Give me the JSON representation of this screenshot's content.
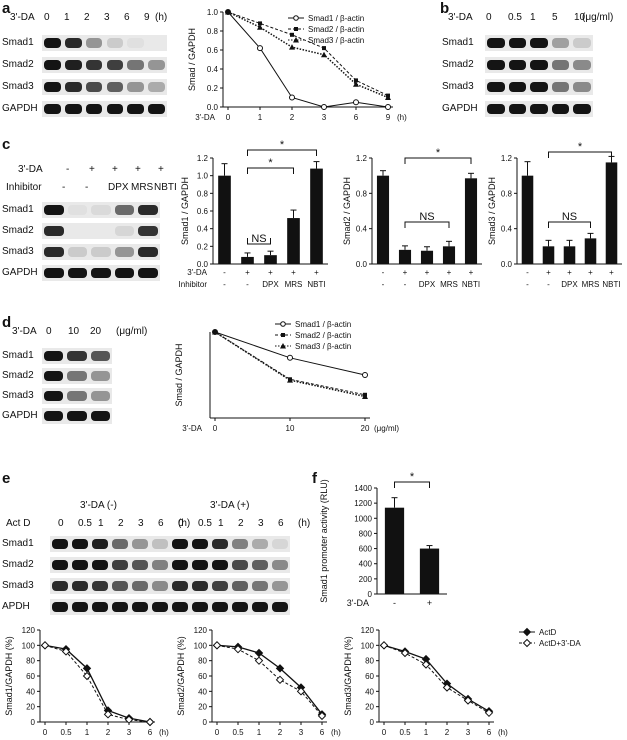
{
  "panels": {
    "a": {
      "label": "a",
      "blot": {
        "header_label": "3'-DA",
        "lanes": [
          "0",
          "1",
          "2",
          "3",
          "6",
          "9"
        ],
        "unit": "(h)",
        "rows": [
          "Smad1",
          "Smad2",
          "Smad3",
          "GAPDH"
        ]
      }
    },
    "b": {
      "label": "b",
      "blot": {
        "header_label": "3'-DA",
        "lanes": [
          "0",
          "0.5",
          "1",
          "5",
          "10"
        ],
        "unit": "(μg/ml)",
        "rows": [
          "Smad1",
          "Smad2",
          "Smad3",
          "GAPDH"
        ]
      }
    },
    "c": {
      "label": "c",
      "blot": {
        "row1_label": "3'-DA",
        "row1_values": [
          "-",
          "+",
          "+",
          "+",
          "+"
        ],
        "row2_label": "Inhibitor",
        "row2_values": [
          "-",
          "-",
          "DPX",
          "MRS",
          "NBTI"
        ],
        "rows": [
          "Smad1",
          "Smad2",
          "Smad3",
          "GAPDH"
        ]
      },
      "bar_x_row1_label": "3'-DA",
      "bar_x_row1": [
        "-",
        "+",
        "+",
        "+",
        "+"
      ],
      "bar_x_row2_label": "Inhibitor",
      "bar_x_row2": [
        "-",
        "-",
        "DPX",
        "MRS",
        "NBTI"
      ],
      "sig": "*",
      "ns": "NS"
    },
    "d": {
      "label": "d",
      "blot": {
        "header_label": "3'-DA",
        "lanes": [
          "0",
          "10",
          "20"
        ],
        "unit": "(μg/ml)",
        "rows": [
          "Smad1",
          "Smad2",
          "Smad3",
          "GAPDH"
        ]
      }
    },
    "e": {
      "label": "e",
      "blot": {
        "group_neg": "3'-DA  (-)",
        "group_pos": "3'-DA  (+)",
        "act_label": "Act D",
        "lanes": [
          "0",
          "0.5",
          "1",
          "2",
          "3",
          "6"
        ],
        "unit": "(h)",
        "rows": [
          "Smad1",
          "Smad2",
          "Smad3",
          "APDH"
        ]
      }
    },
    "f": {
      "label": "f",
      "sig": "*",
      "x_label": "3'-DA"
    }
  },
  "chart_data": [
    {
      "id": "a-line",
      "type": "line",
      "ylabel": "Smad / GAPDH",
      "xlabel": "(h)",
      "x_row_label": "3'-DA",
      "categories": [
        "0",
        "1",
        "2",
        "3",
        "6",
        "9"
      ],
      "ylim": [
        0,
        1.0
      ],
      "yticks": [
        "0.0",
        "0.2",
        "0.4",
        "0.6",
        "0.8",
        "1.0"
      ],
      "series": [
        {
          "name": "Smad1 / β-actin",
          "values": [
            1.0,
            0.62,
            0.1,
            0.0,
            0.05,
            0.0
          ]
        },
        {
          "name": "Smad2 / β-actin",
          "values": [
            1.0,
            0.88,
            0.76,
            0.62,
            0.28,
            0.12
          ]
        },
        {
          "name": "Smad3 / β-actin",
          "values": [
            1.0,
            0.84,
            0.63,
            0.55,
            0.24,
            0.1
          ]
        }
      ]
    },
    {
      "id": "c-bar1",
      "type": "bar",
      "ylabel": "Smad1 / GAPDH",
      "ylim": [
        0,
        1.2
      ],
      "yticks": [
        "0.0",
        "0.2",
        "0.4",
        "0.6",
        "0.8",
        "1.0",
        "1.2"
      ],
      "values": [
        1.0,
        0.08,
        0.1,
        0.52,
        1.08
      ]
    },
    {
      "id": "c-bar2",
      "type": "bar",
      "ylabel": "Smad2 / GAPDH",
      "ylim": [
        0,
        1.2
      ],
      "yticks": [
        "0.0",
        "0.4",
        "0.8",
        "1.2"
      ],
      "values": [
        1.0,
        0.16,
        0.15,
        0.2,
        0.97
      ]
    },
    {
      "id": "c-bar3",
      "type": "bar",
      "ylabel": "Smad3 / GAPDH",
      "ylim": [
        0,
        1.2
      ],
      "yticks": [
        "0.0",
        "0.4",
        "0.8",
        "1.2"
      ],
      "values": [
        1.0,
        0.2,
        0.2,
        0.29,
        1.15
      ]
    },
    {
      "id": "d-line",
      "type": "line",
      "ylabel": "Smad / GAPDH",
      "xlabel": "(μg/ml)",
      "x_row_label": "3'-DA",
      "categories": [
        "0",
        "10",
        "20"
      ],
      "ylim": [
        0,
        1.0
      ],
      "series": [
        {
          "name": "Smad1 / β-actin",
          "values": [
            1.0,
            0.7,
            0.5
          ]
        },
        {
          "name": "Smad2 / β-actin",
          "values": [
            1.0,
            0.45,
            0.27
          ]
        },
        {
          "name": "Smad3 / β-actin",
          "values": [
            1.0,
            0.44,
            0.25
          ]
        }
      ]
    },
    {
      "id": "f-bar",
      "type": "bar",
      "ylabel": "Smad1 promoter activity (RLU)",
      "ylim": [
        0,
        1400
      ],
      "yticks": [
        "0",
        "200",
        "400",
        "600",
        "800",
        "1000",
        "1200",
        "1400"
      ],
      "values": [
        1140,
        600
      ],
      "categories": [
        "-",
        "+"
      ]
    },
    {
      "id": "e-line1",
      "type": "line",
      "ylabel": "Smad1/GAPDH (%)",
      "xlabel": "(h)",
      "categories": [
        "0",
        "0.5",
        "1",
        "2",
        "3",
        "6"
      ],
      "ylim": [
        0,
        120
      ],
      "yticks": [
        "0",
        "20",
        "40",
        "60",
        "80",
        "100",
        "120"
      ],
      "series": [
        {
          "name": "ActD",
          "values": [
            100,
            95,
            70,
            15,
            5,
            0
          ]
        },
        {
          "name": "ActD+3'-DA",
          "values": [
            100,
            92,
            60,
            10,
            3,
            0
          ]
        }
      ]
    },
    {
      "id": "e-line2",
      "type": "line",
      "ylabel": "Smad2/GAPDH (%)",
      "xlabel": "(h)",
      "categories": [
        "0",
        "0.5",
        "1",
        "2",
        "3",
        "6"
      ],
      "ylim": [
        0,
        120
      ],
      "yticks": [
        "0",
        "20",
        "40",
        "60",
        "80",
        "100",
        "120"
      ],
      "series": [
        {
          "name": "ActD",
          "values": [
            100,
            98,
            90,
            70,
            45,
            10
          ]
        },
        {
          "name": "ActD+3'-DA",
          "values": [
            100,
            95,
            80,
            55,
            40,
            8
          ]
        }
      ]
    },
    {
      "id": "e-line3",
      "type": "line",
      "ylabel": "Smad3/GAPDH (%)",
      "xlabel": "(h)",
      "categories": [
        "0",
        "0.5",
        "1",
        "2",
        "3",
        "6"
      ],
      "ylim": [
        0,
        120
      ],
      "yticks": [
        "0",
        "20",
        "40",
        "60",
        "80",
        "100",
        "120"
      ],
      "series": [
        {
          "name": "ActD",
          "values": [
            100,
            92,
            82,
            50,
            30,
            14
          ]
        },
        {
          "name": "ActD+3'-DA",
          "values": [
            100,
            90,
            75,
            45,
            28,
            12
          ]
        }
      ]
    }
  ]
}
